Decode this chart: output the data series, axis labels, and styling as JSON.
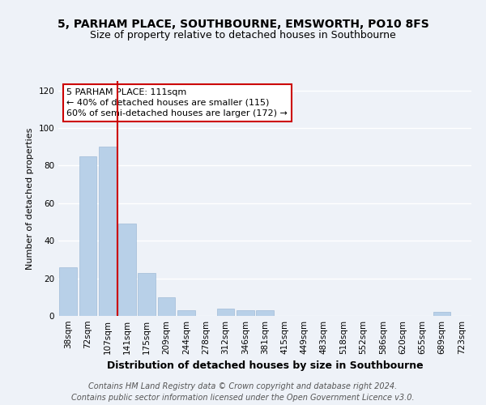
{
  "title": "5, PARHAM PLACE, SOUTHBOURNE, EMSWORTH, PO10 8FS",
  "subtitle": "Size of property relative to detached houses in Southbourne",
  "xlabel": "Distribution of detached houses by size in Southbourne",
  "ylabel": "Number of detached properties",
  "categories": [
    "38sqm",
    "72sqm",
    "107sqm",
    "141sqm",
    "175sqm",
    "209sqm",
    "244sqm",
    "278sqm",
    "312sqm",
    "346sqm",
    "381sqm",
    "415sqm",
    "449sqm",
    "483sqm",
    "518sqm",
    "552sqm",
    "586sqm",
    "620sqm",
    "655sqm",
    "689sqm",
    "723sqm"
  ],
  "values": [
    26,
    85,
    90,
    49,
    23,
    10,
    3,
    0,
    4,
    3,
    3,
    0,
    0,
    0,
    0,
    0,
    0,
    0,
    0,
    2,
    0
  ],
  "bar_color": "#b8d0e8",
  "bar_edge_color": "#a0bcd8",
  "highlight_line_color": "#cc0000",
  "annotation_text": "5 PARHAM PLACE: 111sqm\n← 40% of detached houses are smaller (115)\n60% of semi-detached houses are larger (172) →",
  "annotation_box_color": "#ffffff",
  "annotation_box_edge_color": "#cc0000",
  "ylim": [
    0,
    125
  ],
  "yticks": [
    0,
    20,
    40,
    60,
    80,
    100,
    120
  ],
  "footer_line1": "Contains HM Land Registry data © Crown copyright and database right 2024.",
  "footer_line2": "Contains public sector information licensed under the Open Government Licence v3.0.",
  "background_color": "#eef2f8",
  "plot_background_color": "#eef2f8",
  "grid_color": "#ffffff",
  "title_fontsize": 10,
  "subtitle_fontsize": 9,
  "xlabel_fontsize": 9,
  "ylabel_fontsize": 8,
  "tick_fontsize": 7.5,
  "annotation_fontsize": 8,
  "footer_fontsize": 7
}
